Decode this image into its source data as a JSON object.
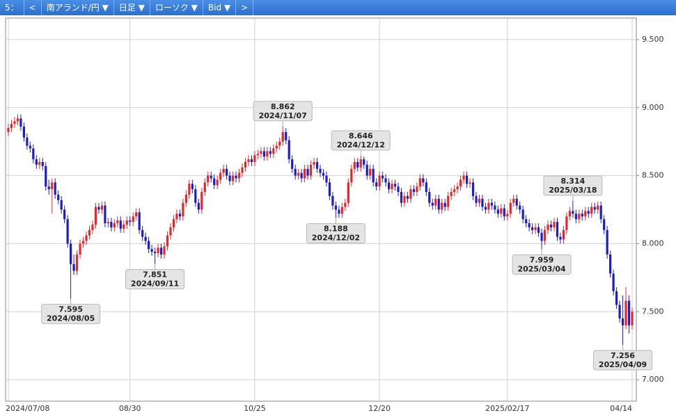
{
  "toolbar": {
    "period": "5：",
    "prev": "<",
    "pair": "南アランド/円 ▼",
    "interval": "日足 ▼",
    "style": "ローソク ▼",
    "side": "Bid ▼",
    "next": ">"
  },
  "chart_data": {
    "type": "candlestick",
    "categories": [
      "2024/07/08",
      null,
      null,
      null,
      null,
      null,
      null,
      null,
      null,
      null,
      null,
      null,
      null,
      null,
      null,
      null,
      null,
      null,
      null,
      null,
      null,
      null,
      null,
      null,
      null,
      null,
      null,
      null,
      null,
      null,
      null,
      null,
      null,
      null,
      null,
      null,
      null,
      null,
      null,
      "08/30",
      null,
      null,
      null,
      null,
      null,
      null,
      null,
      null,
      null,
      null,
      null,
      null,
      null,
      null,
      null,
      null,
      null,
      null,
      null,
      null,
      null,
      null,
      null,
      null,
      null,
      null,
      null,
      null,
      null,
      null,
      null,
      null,
      null,
      null,
      null,
      null,
      null,
      null,
      null,
      "10/25",
      null,
      null,
      null,
      null,
      null,
      null,
      null,
      null,
      null,
      null,
      null,
      null,
      null,
      null,
      null,
      null,
      null,
      null,
      null,
      null,
      null,
      null,
      null,
      null,
      null,
      null,
      null,
      null,
      null,
      null,
      null,
      null,
      null,
      null,
      null,
      null,
      null,
      null,
      null,
      "12/20",
      null,
      null,
      null,
      null,
      null,
      null,
      null,
      null,
      null,
      null,
      null,
      null,
      null,
      null,
      null,
      null,
      null,
      null,
      null,
      null,
      null,
      null,
      null,
      null,
      null,
      null,
      null,
      null,
      null,
      null,
      null,
      null,
      null,
      null,
      null,
      null,
      null,
      null,
      null,
      null,
      "2025/02/17",
      null,
      null,
      null,
      null,
      null,
      null,
      null,
      null,
      null,
      null,
      null,
      null,
      null,
      null,
      null,
      null,
      null,
      null,
      null,
      null,
      null,
      null,
      null,
      null,
      null,
      null,
      null,
      null,
      null,
      null,
      null,
      null,
      null,
      null,
      null,
      null,
      null,
      null,
      null,
      "04/14"
    ],
    "ohlc": [
      [
        8.82,
        8.88,
        8.79,
        8.85
      ],
      [
        8.85,
        8.91,
        8.82,
        8.88
      ],
      [
        8.88,
        8.93,
        8.85,
        8.9
      ],
      [
        8.9,
        8.95,
        8.87,
        8.92
      ],
      [
        8.92,
        8.95,
        8.83,
        8.86
      ],
      [
        8.86,
        8.89,
        8.75,
        8.78
      ],
      [
        8.78,
        8.81,
        8.69,
        8.72
      ],
      [
        8.72,
        8.75,
        8.67,
        8.7
      ],
      [
        8.7,
        8.73,
        8.59,
        8.62
      ],
      [
        8.62,
        8.65,
        8.55,
        8.58
      ],
      [
        8.58,
        8.63,
        8.55,
        8.6
      ],
      [
        8.6,
        8.63,
        8.54,
        8.57
      ],
      [
        8.57,
        8.6,
        8.39,
        8.42
      ],
      [
        8.42,
        8.47,
        8.36,
        8.4
      ],
      [
        8.4,
        8.48,
        8.22,
        8.45
      ],
      [
        8.45,
        8.48,
        8.33,
        8.36
      ],
      [
        8.36,
        8.39,
        8.29,
        8.32
      ],
      [
        8.32,
        8.35,
        8.22,
        8.25
      ],
      [
        8.25,
        8.28,
        8.15,
        8.18
      ],
      [
        8.18,
        8.21,
        7.97,
        8.0
      ],
      [
        8.0,
        8.03,
        7.595,
        7.85
      ],
      [
        7.85,
        7.92,
        7.77,
        7.8
      ],
      [
        7.8,
        7.95,
        7.77,
        7.92
      ],
      [
        7.92,
        8.03,
        7.89,
        8.0
      ],
      [
        8.0,
        8.05,
        7.97,
        8.02
      ],
      [
        8.02,
        8.09,
        7.99,
        8.06
      ],
      [
        8.06,
        8.13,
        8.03,
        8.1
      ],
      [
        8.1,
        8.17,
        8.07,
        8.14
      ],
      [
        8.14,
        8.3,
        8.11,
        8.27
      ],
      [
        8.27,
        8.3,
        8.22,
        8.25
      ],
      [
        8.25,
        8.31,
        8.22,
        8.28
      ],
      [
        8.28,
        8.31,
        8.12,
        8.15
      ],
      [
        8.15,
        8.19,
        8.12,
        8.16
      ],
      [
        8.16,
        8.19,
        8.09,
        8.12
      ],
      [
        8.12,
        8.18,
        8.09,
        8.15
      ],
      [
        8.15,
        8.2,
        8.12,
        8.17
      ],
      [
        8.17,
        8.2,
        8.08,
        8.11
      ],
      [
        8.11,
        8.17,
        8.08,
        8.14
      ],
      [
        8.14,
        8.2,
        8.11,
        8.17
      ],
      [
        8.17,
        8.2,
        8.13,
        8.16
      ],
      [
        8.16,
        8.23,
        8.13,
        8.2
      ],
      [
        8.2,
        8.26,
        8.17,
        8.23
      ],
      [
        8.23,
        8.26,
        8.07,
        8.1
      ],
      [
        8.1,
        8.13,
        8.02,
        8.05
      ],
      [
        8.05,
        8.08,
        7.99,
        8.02
      ],
      [
        8.02,
        8.05,
        7.93,
        7.96
      ],
      [
        7.96,
        7.99,
        7.91,
        7.94
      ],
      [
        7.94,
        7.97,
        7.851,
        7.93
      ],
      [
        7.93,
        8.0,
        7.9,
        7.97
      ],
      [
        7.97,
        8.0,
        7.89,
        7.92
      ],
      [
        7.92,
        8.01,
        7.89,
        7.98
      ],
      [
        7.98,
        8.09,
        7.95,
        8.06
      ],
      [
        8.06,
        8.15,
        8.03,
        8.12
      ],
      [
        8.12,
        8.21,
        8.09,
        8.18
      ],
      [
        8.18,
        8.25,
        8.15,
        8.22
      ],
      [
        8.22,
        8.25,
        8.17,
        8.2
      ],
      [
        8.2,
        8.33,
        8.17,
        8.3
      ],
      [
        8.3,
        8.39,
        8.27,
        8.36
      ],
      [
        8.36,
        8.47,
        8.33,
        8.44
      ],
      [
        8.44,
        8.47,
        8.37,
        8.4
      ],
      [
        8.4,
        8.43,
        8.27,
        8.3
      ],
      [
        8.3,
        8.33,
        8.22,
        8.25
      ],
      [
        8.25,
        8.41,
        8.22,
        8.38
      ],
      [
        8.38,
        8.48,
        8.35,
        8.45
      ],
      [
        8.45,
        8.53,
        8.42,
        8.5
      ],
      [
        8.5,
        8.53,
        8.45,
        8.48
      ],
      [
        8.48,
        8.51,
        8.4,
        8.43
      ],
      [
        8.43,
        8.5,
        8.4,
        8.47
      ],
      [
        8.47,
        8.55,
        8.44,
        8.52
      ],
      [
        8.52,
        8.58,
        8.49,
        8.55
      ],
      [
        8.55,
        8.58,
        8.47,
        8.5
      ],
      [
        8.5,
        8.53,
        8.43,
        8.46
      ],
      [
        8.46,
        8.53,
        8.43,
        8.5
      ],
      [
        8.5,
        8.53,
        8.45,
        8.48
      ],
      [
        8.48,
        8.55,
        8.45,
        8.52
      ],
      [
        8.52,
        8.59,
        8.49,
        8.56
      ],
      [
        8.56,
        8.63,
        8.53,
        8.6
      ],
      [
        8.6,
        8.65,
        8.57,
        8.62
      ],
      [
        8.62,
        8.65,
        8.57,
        8.6
      ],
      [
        8.6,
        8.68,
        8.57,
        8.65
      ],
      [
        8.65,
        8.69,
        8.62,
        8.66
      ],
      [
        8.66,
        8.71,
        8.63,
        8.68
      ],
      [
        8.68,
        8.71,
        8.61,
        8.64
      ],
      [
        8.64,
        8.71,
        8.61,
        8.68
      ],
      [
        8.68,
        8.71,
        8.63,
        8.66
      ],
      [
        8.66,
        8.73,
        8.63,
        8.7
      ],
      [
        8.7,
        8.75,
        8.67,
        8.72
      ],
      [
        8.72,
        8.78,
        8.69,
        8.75
      ],
      [
        8.75,
        8.862,
        8.72,
        8.82
      ],
      [
        8.82,
        8.85,
        8.73,
        8.76
      ],
      [
        8.76,
        8.79,
        8.59,
        8.62
      ],
      [
        8.62,
        8.65,
        8.52,
        8.55
      ],
      [
        8.55,
        8.58,
        8.47,
        8.5
      ],
      [
        8.5,
        8.55,
        8.47,
        8.52
      ],
      [
        8.52,
        8.55,
        8.45,
        8.48
      ],
      [
        8.48,
        8.58,
        8.45,
        8.55
      ],
      [
        8.55,
        8.58,
        8.47,
        8.5
      ],
      [
        8.5,
        8.61,
        8.47,
        8.58
      ],
      [
        8.58,
        8.63,
        8.55,
        8.6
      ],
      [
        8.6,
        8.63,
        8.52,
        8.55
      ],
      [
        8.55,
        8.58,
        8.49,
        8.52
      ],
      [
        8.52,
        8.55,
        8.47,
        8.5
      ],
      [
        8.5,
        8.53,
        8.42,
        8.45
      ],
      [
        8.45,
        8.48,
        8.32,
        8.35
      ],
      [
        8.35,
        8.38,
        8.25,
        8.28
      ],
      [
        8.28,
        8.31,
        8.188,
        8.25
      ],
      [
        8.25,
        8.28,
        8.19,
        8.22
      ],
      [
        8.22,
        8.3,
        8.19,
        8.27
      ],
      [
        8.27,
        8.33,
        8.24,
        8.3
      ],
      [
        8.3,
        8.48,
        8.27,
        8.45
      ],
      [
        8.45,
        8.58,
        8.42,
        8.55
      ],
      [
        8.55,
        8.63,
        8.52,
        8.6
      ],
      [
        8.6,
        8.63,
        8.53,
        8.56
      ],
      [
        8.56,
        8.646,
        8.53,
        8.62
      ],
      [
        8.62,
        8.64,
        8.55,
        8.58
      ],
      [
        8.58,
        8.61,
        8.47,
        8.5
      ],
      [
        8.5,
        8.58,
        8.47,
        8.55
      ],
      [
        8.55,
        8.58,
        8.42,
        8.45
      ],
      [
        8.45,
        8.48,
        8.39,
        8.42
      ],
      [
        8.42,
        8.53,
        8.39,
        8.5
      ],
      [
        8.5,
        8.53,
        8.45,
        8.48
      ],
      [
        8.48,
        8.51,
        8.42,
        8.45
      ],
      [
        8.45,
        8.48,
        8.37,
        8.4
      ],
      [
        8.4,
        8.47,
        8.37,
        8.44
      ],
      [
        8.44,
        8.47,
        8.39,
        8.42
      ],
      [
        8.42,
        8.45,
        8.35,
        8.38
      ],
      [
        8.38,
        8.41,
        8.27,
        8.3
      ],
      [
        8.3,
        8.38,
        8.27,
        8.35
      ],
      [
        8.35,
        8.38,
        8.3,
        8.33
      ],
      [
        8.33,
        8.43,
        8.3,
        8.4
      ],
      [
        8.4,
        8.43,
        8.35,
        8.38
      ],
      [
        8.38,
        8.45,
        8.35,
        8.42
      ],
      [
        8.42,
        8.51,
        8.39,
        8.48
      ],
      [
        8.48,
        8.51,
        8.42,
        8.45
      ],
      [
        8.45,
        8.48,
        8.35,
        8.38
      ],
      [
        8.38,
        8.41,
        8.27,
        8.3
      ],
      [
        8.3,
        8.33,
        8.25,
        8.28
      ],
      [
        8.28,
        8.36,
        8.25,
        8.33
      ],
      [
        8.33,
        8.36,
        8.22,
        8.25
      ],
      [
        8.25,
        8.33,
        8.22,
        8.3
      ],
      [
        8.3,
        8.33,
        8.24,
        8.27
      ],
      [
        8.27,
        8.38,
        8.24,
        8.35
      ],
      [
        8.35,
        8.41,
        8.32,
        8.38
      ],
      [
        8.38,
        8.43,
        8.35,
        8.4
      ],
      [
        8.4,
        8.45,
        8.37,
        8.42
      ],
      [
        8.42,
        8.5,
        8.39,
        8.47
      ],
      [
        8.47,
        8.53,
        8.44,
        8.5
      ],
      [
        8.5,
        8.53,
        8.41,
        8.44
      ],
      [
        8.44,
        8.48,
        8.41,
        8.45
      ],
      [
        8.45,
        8.48,
        8.32,
        8.35
      ],
      [
        8.35,
        8.38,
        8.27,
        8.3
      ],
      [
        8.3,
        8.36,
        8.27,
        8.33
      ],
      [
        8.33,
        8.36,
        8.24,
        8.27
      ],
      [
        8.27,
        8.3,
        8.22,
        8.25
      ],
      [
        8.25,
        8.33,
        8.22,
        8.3
      ],
      [
        8.3,
        8.33,
        8.25,
        8.28
      ],
      [
        8.28,
        8.31,
        8.22,
        8.25
      ],
      [
        8.25,
        8.28,
        8.19,
        8.22
      ],
      [
        8.22,
        8.29,
        8.19,
        8.26
      ],
      [
        8.26,
        8.29,
        8.17,
        8.2
      ],
      [
        8.2,
        8.25,
        8.17,
        8.22
      ],
      [
        8.22,
        8.33,
        8.19,
        8.3
      ],
      [
        8.3,
        8.36,
        8.27,
        8.33
      ],
      [
        8.33,
        8.36,
        8.25,
        8.28
      ],
      [
        8.28,
        8.31,
        8.22,
        8.25
      ],
      [
        8.25,
        8.28,
        8.15,
        8.18
      ],
      [
        8.18,
        8.21,
        8.12,
        8.15
      ],
      [
        8.15,
        8.18,
        8.09,
        8.12
      ],
      [
        8.12,
        8.15,
        8.07,
        8.1
      ],
      [
        8.1,
        8.15,
        8.07,
        8.12
      ],
      [
        8.12,
        8.15,
        8.05,
        8.08
      ],
      [
        8.08,
        8.11,
        7.959,
        8.02
      ],
      [
        8.02,
        8.13,
        7.99,
        8.1
      ],
      [
        8.1,
        8.17,
        8.07,
        8.14
      ],
      [
        8.14,
        8.17,
        8.09,
        8.12
      ],
      [
        8.12,
        8.19,
        8.09,
        8.16
      ],
      [
        8.16,
        8.19,
        8.02,
        8.05
      ],
      [
        8.05,
        8.08,
        8.0,
        8.03
      ],
      [
        8.03,
        8.13,
        8.0,
        8.1
      ],
      [
        8.1,
        8.23,
        8.07,
        8.2
      ],
      [
        8.2,
        8.27,
        8.17,
        8.24
      ],
      [
        8.24,
        8.314,
        8.19,
        8.22
      ],
      [
        8.22,
        8.25,
        8.15,
        8.18
      ],
      [
        8.18,
        8.25,
        8.15,
        8.22
      ],
      [
        8.22,
        8.25,
        8.17,
        8.2
      ],
      [
        8.2,
        8.27,
        8.17,
        8.24
      ],
      [
        8.24,
        8.27,
        8.19,
        8.22
      ],
      [
        8.22,
        8.3,
        8.19,
        8.27
      ],
      [
        8.27,
        8.3,
        8.22,
        8.25
      ],
      [
        8.25,
        8.31,
        8.22,
        8.28
      ],
      [
        8.28,
        8.31,
        8.15,
        8.18
      ],
      [
        8.18,
        8.21,
        8.07,
        8.1
      ],
      [
        8.1,
        8.13,
        7.89,
        7.92
      ],
      [
        7.92,
        7.95,
        7.75,
        7.78
      ],
      [
        7.78,
        7.81,
        7.62,
        7.65
      ],
      [
        7.65,
        7.68,
        7.52,
        7.55
      ],
      [
        7.55,
        7.58,
        7.42,
        7.45
      ],
      [
        7.45,
        7.62,
        7.256,
        7.4
      ],
      [
        7.4,
        7.68,
        7.37,
        7.58
      ],
      [
        7.58,
        7.62,
        7.34,
        7.4
      ],
      [
        7.4,
        7.53,
        7.37,
        7.5
      ]
    ],
    "up_color": "#e8262a",
    "down_color": "#1c1cc8",
    "grid": true,
    "ylim": [
      6.842,
      9.653
    ],
    "yticks": [
      {
        "value": 7.0,
        "label": "7.000"
      },
      {
        "value": 7.5,
        "label": "7.500"
      },
      {
        "value": 8.0,
        "label": "8.000"
      },
      {
        "value": 8.5,
        "label": "8.500"
      },
      {
        "value": 9.0,
        "label": "9.000"
      },
      {
        "value": 9.5,
        "label": "9.500"
      }
    ],
    "annotations": [
      {
        "value": 7.595,
        "date": "2024/08/05"
      },
      {
        "value": 7.851,
        "date": "2024/09/11"
      },
      {
        "value": 8.862,
        "date": "2024/11/07"
      },
      {
        "value": 8.188,
        "date": "2024/12/02"
      },
      {
        "value": 8.646,
        "date": "2024/12/12"
      },
      {
        "value": 7.959,
        "date": "2025/03/04"
      },
      {
        "value": 8.314,
        "date": "2025/03/18"
      },
      {
        "value": 7.256,
        "date": "2025/04/09"
      }
    ]
  }
}
